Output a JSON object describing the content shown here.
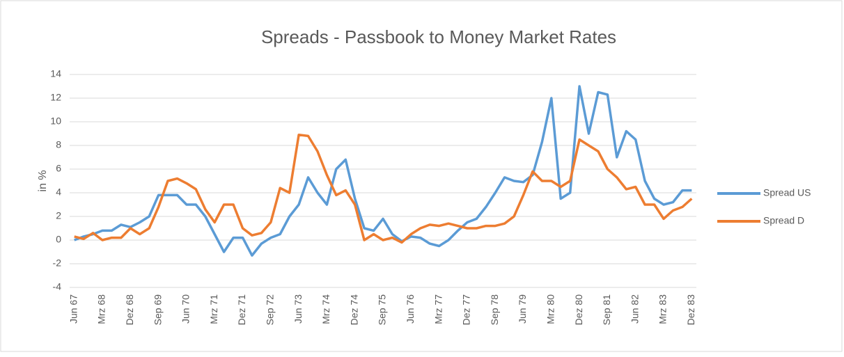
{
  "chart_data": {
    "type": "line",
    "title": "Spreads - Passbook to Money Market Rates",
    "y_label": "in %",
    "categories": [
      "Jun 67",
      null,
      null,
      "Mrz 68",
      null,
      null,
      "Dez 68",
      null,
      null,
      "Sep 69",
      null,
      null,
      "Jun 70",
      null,
      null,
      "Mrz 71",
      null,
      null,
      "Dez 71",
      null,
      null,
      "Sep 72",
      null,
      null,
      "Jun 73",
      null,
      null,
      "Mrz 74",
      null,
      null,
      "Dez 74",
      null,
      null,
      "Sep 75",
      null,
      null,
      "Jun 76",
      null,
      null,
      "Mrz 77",
      null,
      null,
      "Dez 77",
      null,
      null,
      "Sep 78",
      null,
      null,
      "Jun 79",
      null,
      null,
      "Mrz 80",
      null,
      null,
      "Dez 80",
      null,
      null,
      "Sep 81",
      null,
      null,
      "Jun 82",
      null,
      null,
      "Mrz 83",
      null,
      null,
      "Dez 83"
    ],
    "series": [
      {
        "name": "Spread US",
        "color": "#5b9bd5",
        "values": [
          0,
          0.3,
          0.5,
          0.8,
          0.8,
          1.3,
          1.1,
          1.5,
          2.0,
          3.8,
          3.8,
          3.8,
          3.0,
          3.0,
          2.0,
          0.5,
          -1.0,
          0.2,
          0.2,
          -1.3,
          -0.3,
          0.2,
          0.5,
          2.0,
          3.0,
          5.3,
          4.0,
          3.0,
          6.0,
          6.8,
          3.5,
          1.0,
          0.8,
          1.8,
          0.5,
          -0.1,
          0.3,
          0.2,
          -0.3,
          -0.5,
          0.0,
          0.8,
          1.5,
          1.8,
          2.8,
          4.0,
          5.3,
          5.0,
          4.9,
          5.5,
          8.3,
          12.0,
          3.5,
          4.0,
          13.0,
          9.0,
          12.5,
          12.3,
          7.0,
          9.2,
          8.5,
          5.0,
          3.5,
          3.0,
          3.2,
          4.2,
          4.2
        ]
      },
      {
        "name": "Spread D",
        "color": "#ed7d31",
        "values": [
          0.3,
          0.1,
          0.6,
          0,
          0.2,
          0.2,
          1.0,
          0.5,
          1.0,
          2.8,
          5.0,
          5.2,
          4.8,
          4.3,
          2.6,
          1.5,
          3.0,
          3.0,
          1.0,
          0.4,
          0.6,
          1.5,
          4.4,
          4.0,
          8.9,
          8.8,
          7.5,
          5.5,
          3.8,
          4.2,
          3.0,
          0,
          0.5,
          0,
          0.2,
          -0.2,
          0.5,
          1.0,
          1.3,
          1.2,
          1.4,
          1.2,
          1.0,
          1.0,
          1.2,
          1.2,
          1.4,
          2.0,
          3.8,
          5.8,
          5.0,
          5.0,
          4.5,
          5.0,
          8.5,
          8.0,
          7.5,
          6.0,
          5.3,
          4.3,
          4.5,
          3.0,
          3.0,
          1.8,
          2.5,
          2.8,
          3.5
        ]
      }
    ],
    "ylim": [
      -4,
      14
    ],
    "yticks": [
      -4,
      -2,
      0,
      2,
      4,
      6,
      8,
      10,
      12,
      14
    ],
    "grid": true,
    "legend": "right"
  }
}
